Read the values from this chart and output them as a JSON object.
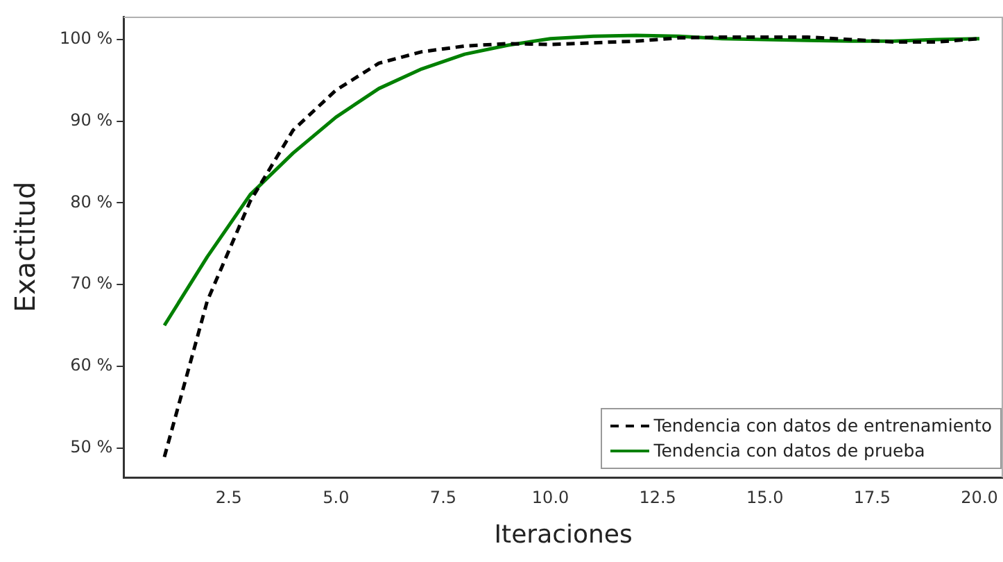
{
  "chart_data": {
    "type": "line",
    "xlabel": "Iteraciones",
    "ylabel": "Exactitud",
    "x": [
      1,
      2,
      3,
      4,
      5,
      6,
      7,
      8,
      9,
      10,
      11,
      12,
      13,
      14,
      15,
      16,
      17,
      18,
      19,
      20
    ],
    "series": [
      {
        "name": "Tendencia con datos de entrenamiento",
        "color": "#000000",
        "line_style": "dashed",
        "values": [
          48.9,
          68,
          80.2,
          88.9,
          93.8,
          97.1,
          98.5,
          99.2,
          99.5,
          99.4,
          99.6,
          99.8,
          100.2,
          100.3,
          100.3,
          100.3,
          100,
          99.7,
          99.7,
          100.1
        ]
      },
      {
        "name": "Tendencia con datos de prueba",
        "color": "#008000",
        "line_style": "solid",
        "values": [
          65,
          73.4,
          81,
          86.1,
          90.5,
          94,
          96.4,
          98.2,
          99.3,
          100.1,
          100.4,
          100.5,
          100.4,
          100.1,
          100,
          99.9,
          99.8,
          99.8,
          100,
          100.1
        ]
      }
    ],
    "xlim": [
      0.05,
      20.55
    ],
    "xticks": [
      {
        "value": 2.5,
        "label": "2.5"
      },
      {
        "value": 5,
        "label": "5.0"
      },
      {
        "value": 7.5,
        "label": "7.5"
      },
      {
        "value": 10,
        "label": "10.0"
      },
      {
        "value": 12.5,
        "label": "12.5"
      },
      {
        "value": 15,
        "label": "15.0"
      },
      {
        "value": 17.5,
        "label": "17.5"
      },
      {
        "value": 20,
        "label": "20.0"
      }
    ],
    "ylim": [
      46.4,
      102.8
    ],
    "yticks": [
      {
        "value": 50,
        "label": "50 %"
      },
      {
        "value": 60,
        "label": "60 %"
      },
      {
        "value": 70,
        "label": "70 %"
      },
      {
        "value": 80,
        "label": "80 %"
      },
      {
        "value": 90,
        "label": "90 %"
      },
      {
        "value": 100,
        "label": "100 %"
      }
    ],
    "grid": false,
    "legend": "bottom right",
    "marker": "none"
  }
}
